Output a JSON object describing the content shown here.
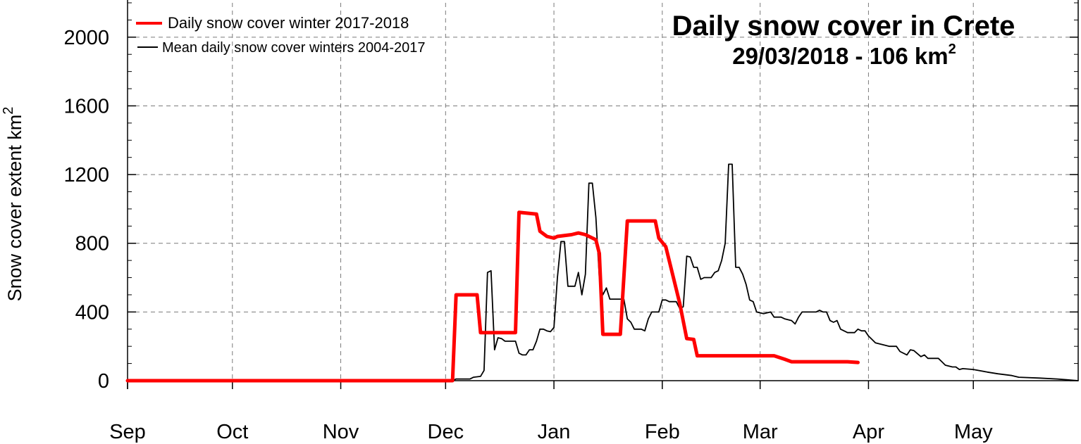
{
  "chart_data": {
    "type": "line",
    "title": "Daily snow cover in Crete",
    "subtitle_date": "29/03/2018 - 106 km",
    "subtitle_sup": "2",
    "ylabel": "Snow cover extent km",
    "ylabel_sup": "2",
    "ylim": [
      0,
      2200
    ],
    "yticks": [
      0,
      400,
      800,
      1200,
      1600,
      2000
    ],
    "ytick_labels": [
      "0",
      "400",
      "800",
      "1200",
      "1600",
      "2000"
    ],
    "xlim": [
      "2017-09-01",
      "2018-05-31"
    ],
    "x_months": [
      "2017-09-01",
      "2017-10-01",
      "2017-11-01",
      "2017-12-01",
      "2018-01-01",
      "2018-02-01",
      "2018-03-01",
      "2018-04-01",
      "2018-05-01"
    ],
    "xtick_labels": [
      "Sep",
      "Oct",
      "Nov",
      "Dec",
      "Jan",
      "Feb",
      "Mar",
      "Apr",
      "May"
    ],
    "grid": true,
    "legend_position": "top-left",
    "colors": {
      "red_series": "#ff0000",
      "black_series": "#000000"
    },
    "series": [
      {
        "name": "Daily snow cover winter 2017-2018",
        "color": "#ff0000",
        "points": [
          [
            "2017-09-01",
            0
          ],
          [
            "2017-12-03",
            0
          ],
          [
            "2017-12-04",
            500
          ],
          [
            "2017-12-10",
            500
          ],
          [
            "2017-12-11",
            280
          ],
          [
            "2017-12-21",
            280
          ],
          [
            "2017-12-22",
            980
          ],
          [
            "2017-12-27",
            970
          ],
          [
            "2017-12-28",
            870
          ],
          [
            "2017-12-30",
            840
          ],
          [
            "2018-01-01",
            830
          ],
          [
            "2018-01-02",
            840
          ],
          [
            "2018-01-06",
            850
          ],
          [
            "2018-01-08",
            860
          ],
          [
            "2018-01-10",
            850
          ],
          [
            "2018-01-13",
            820
          ],
          [
            "2018-01-14",
            740
          ],
          [
            "2018-01-15",
            270
          ],
          [
            "2018-01-20",
            270
          ],
          [
            "2018-01-22",
            930
          ],
          [
            "2018-01-30",
            930
          ],
          [
            "2018-01-31",
            830
          ],
          [
            "2018-02-02",
            780
          ],
          [
            "2018-02-06",
            450
          ],
          [
            "2018-02-08",
            245
          ],
          [
            "2018-02-10",
            240
          ],
          [
            "2018-02-11",
            145
          ],
          [
            "2018-03-05",
            145
          ],
          [
            "2018-03-08",
            125
          ],
          [
            "2018-03-10",
            110
          ],
          [
            "2018-03-26",
            110
          ],
          [
            "2018-03-29",
            106
          ]
        ]
      },
      {
        "name": "Mean daily snow cover winters 2004-2017",
        "color": "#000000",
        "points": [
          [
            "2017-09-01",
            0
          ],
          [
            "2017-12-03",
            0
          ],
          [
            "2017-12-04",
            10
          ],
          [
            "2017-12-08",
            10
          ],
          [
            "2017-12-09",
            20
          ],
          [
            "2017-12-11",
            25
          ],
          [
            "2017-12-12",
            60
          ],
          [
            "2017-12-13",
            630
          ],
          [
            "2017-12-14",
            640
          ],
          [
            "2017-12-15",
            180
          ],
          [
            "2017-12-16",
            250
          ],
          [
            "2017-12-17",
            245
          ],
          [
            "2017-12-18",
            230
          ],
          [
            "2017-12-21",
            230
          ],
          [
            "2017-12-22",
            160
          ],
          [
            "2017-12-23",
            150
          ],
          [
            "2017-12-24",
            150
          ],
          [
            "2017-12-25",
            180
          ],
          [
            "2017-12-26",
            180
          ],
          [
            "2017-12-27",
            230
          ],
          [
            "2017-12-28",
            300
          ],
          [
            "2017-12-29",
            300
          ],
          [
            "2017-12-30",
            290
          ],
          [
            "2017-12-31",
            285
          ],
          [
            "2018-01-01",
            310
          ],
          [
            "2018-01-02",
            600
          ],
          [
            "2018-01-03",
            810
          ],
          [
            "2018-01-04",
            810
          ],
          [
            "2018-01-05",
            550
          ],
          [
            "2018-01-07",
            550
          ],
          [
            "2018-01-08",
            630
          ],
          [
            "2018-01-09",
            500
          ],
          [
            "2018-01-10",
            620
          ],
          [
            "2018-01-11",
            1150
          ],
          [
            "2018-01-12",
            1150
          ],
          [
            "2018-01-13",
            950
          ],
          [
            "2018-01-14",
            600
          ],
          [
            "2018-01-15",
            500
          ],
          [
            "2018-01-16",
            540
          ],
          [
            "2018-01-17",
            475
          ],
          [
            "2018-01-21",
            475
          ],
          [
            "2018-01-22",
            360
          ],
          [
            "2018-01-23",
            340
          ],
          [
            "2018-01-24",
            300
          ],
          [
            "2018-01-26",
            300
          ],
          [
            "2018-01-27",
            290
          ],
          [
            "2018-01-28",
            360
          ],
          [
            "2018-01-29",
            400
          ],
          [
            "2018-01-31",
            400
          ],
          [
            "2018-02-01",
            470
          ],
          [
            "2018-02-02",
            470
          ],
          [
            "2018-02-03",
            460
          ],
          [
            "2018-02-05",
            460
          ],
          [
            "2018-02-06",
            420
          ],
          [
            "2018-02-07",
            430
          ],
          [
            "2018-02-08",
            725
          ],
          [
            "2018-02-09",
            720
          ],
          [
            "2018-02-10",
            660
          ],
          [
            "2018-02-11",
            660
          ],
          [
            "2018-02-12",
            590
          ],
          [
            "2018-02-13",
            600
          ],
          [
            "2018-02-15",
            600
          ],
          [
            "2018-02-16",
            630
          ],
          [
            "2018-02-17",
            640
          ],
          [
            "2018-02-18",
            700
          ],
          [
            "2018-02-19",
            800
          ],
          [
            "2018-02-20",
            1260
          ],
          [
            "2018-02-21",
            1260
          ],
          [
            "2018-02-22",
            660
          ],
          [
            "2018-02-23",
            660
          ],
          [
            "2018-02-24",
            620
          ],
          [
            "2018-02-25",
            560
          ],
          [
            "2018-02-26",
            470
          ],
          [
            "2018-02-27",
            460
          ],
          [
            "2018-02-28",
            400
          ],
          [
            "2018-03-02",
            390
          ],
          [
            "2018-03-04",
            400
          ],
          [
            "2018-03-05",
            370
          ],
          [
            "2018-03-07",
            370
          ],
          [
            "2018-03-08",
            360
          ],
          [
            "2018-03-10",
            350
          ],
          [
            "2018-03-11",
            330
          ],
          [
            "2018-03-12",
            370
          ],
          [
            "2018-03-13",
            400
          ],
          [
            "2018-03-17",
            400
          ],
          [
            "2018-03-18",
            410
          ],
          [
            "2018-03-19",
            400
          ],
          [
            "2018-03-20",
            400
          ],
          [
            "2018-03-21",
            350
          ],
          [
            "2018-03-22",
            340
          ],
          [
            "2018-03-23",
            350
          ],
          [
            "2018-03-24",
            300
          ],
          [
            "2018-03-25",
            290
          ],
          [
            "2018-03-26",
            280
          ],
          [
            "2018-03-28",
            280
          ],
          [
            "2018-03-29",
            300
          ],
          [
            "2018-03-30",
            290
          ],
          [
            "2018-03-31",
            290
          ],
          [
            "2018-04-01",
            260
          ],
          [
            "2018-04-02",
            240
          ],
          [
            "2018-04-03",
            220
          ],
          [
            "2018-04-05",
            210
          ],
          [
            "2018-04-07",
            200
          ],
          [
            "2018-04-09",
            200
          ],
          [
            "2018-04-10",
            170
          ],
          [
            "2018-04-12",
            150
          ],
          [
            "2018-04-13",
            180
          ],
          [
            "2018-04-14",
            175
          ],
          [
            "2018-04-16",
            140
          ],
          [
            "2018-04-17",
            150
          ],
          [
            "2018-04-18",
            130
          ],
          [
            "2018-04-21",
            130
          ],
          [
            "2018-04-22",
            110
          ],
          [
            "2018-04-23",
            90
          ],
          [
            "2018-04-25",
            80
          ],
          [
            "2018-04-26",
            80
          ],
          [
            "2018-04-27",
            65
          ],
          [
            "2018-04-28",
            70
          ],
          [
            "2018-05-01",
            65
          ],
          [
            "2018-05-05",
            50
          ],
          [
            "2018-05-08",
            40
          ],
          [
            "2018-05-12",
            30
          ],
          [
            "2018-05-14",
            20
          ],
          [
            "2018-05-20",
            15
          ],
          [
            "2018-05-25",
            10
          ],
          [
            "2018-05-28",
            5
          ],
          [
            "2018-05-31",
            0
          ]
        ]
      }
    ]
  }
}
